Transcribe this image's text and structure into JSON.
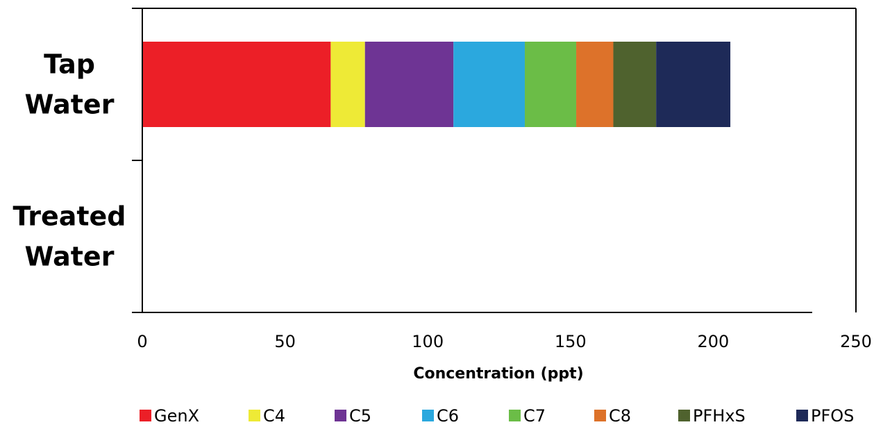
{
  "chart_data": {
    "type": "bar",
    "orientation": "horizontal",
    "stacked": true,
    "categories": [
      [
        "Tap",
        "Water"
      ],
      [
        "Treated",
        "Water"
      ]
    ],
    "series": [
      {
        "name": "GenX",
        "values": [
          66,
          0
        ],
        "color": "#ec1f27"
      },
      {
        "name": "C4",
        "values": [
          12,
          0
        ],
        "color": "#eeea36"
      },
      {
        "name": "C5",
        "values": [
          31,
          0
        ],
        "color": "#6e3494"
      },
      {
        "name": "C6",
        "values": [
          25,
          0
        ],
        "color": "#2ba8de"
      },
      {
        "name": "C7",
        "values": [
          18,
          0
        ],
        "color": "#6bbd47"
      },
      {
        "name": "C8",
        "values": [
          13,
          0
        ],
        "color": "#dd722a"
      },
      {
        "name": "PFHxS",
        "values": [
          15,
          0
        ],
        "color": "#4f622e"
      },
      {
        "name": "PFOS",
        "values": [
          26,
          0
        ],
        "color": "#1e2a58"
      }
    ],
    "xlabel": "Concentration (ppt)",
    "xlim": [
      0,
      250
    ],
    "xticks": [
      0,
      50,
      100,
      150,
      200,
      250
    ],
    "grid": false,
    "legend_position": "bottom"
  }
}
